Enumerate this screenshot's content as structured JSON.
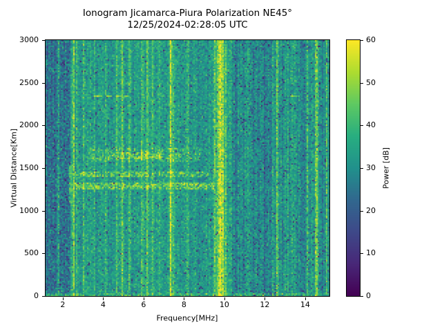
{
  "figure": {
    "title_line1": "Ionogram Jicamarca-Piura Polarization NE45°",
    "title_line2": "12/25/2024-02:28:05 UTC"
  },
  "chart_data": {
    "type": "heatmap",
    "title": "Ionogram Jicamarca-Piura Polarization NE45°",
    "subtitle": "12/25/2024-02:28:05 UTC",
    "station": "Jicamarca-Piura",
    "polarization": "NE45°",
    "timestamp_utc": "12/25/2024-02:28:05",
    "xlabel": "Frequency[MHz]",
    "ylabel": "Virtual Distance[Km]",
    "colorbar_label": "Power [dB]",
    "xlim": [
      1.15,
      15.2
    ],
    "ylim": [
      0,
      3000
    ],
    "clim": [
      0,
      60
    ],
    "x_ticks": [
      2,
      4,
      6,
      8,
      10,
      12,
      14
    ],
    "y_ticks": [
      0,
      500,
      1000,
      1500,
      2000,
      2500,
      3000
    ],
    "colorbar_ticks": [
      0,
      10,
      20,
      30,
      40,
      50,
      60
    ],
    "colormap": "viridis",
    "colormap_stops": [
      "#440154",
      "#482878",
      "#3e4989",
      "#31688e",
      "#21918c",
      "#28ae80",
      "#5ec962",
      "#addc30",
      "#fde725"
    ],
    "noise_regions": [
      {
        "f_range": [
          1.15,
          2.35
        ],
        "mean_db": 25.0,
        "std_db": 5.5,
        "dark_prob": 0.05,
        "streak_db": 1.5
      },
      {
        "f_range": [
          2.35,
          8.55
        ],
        "mean_db": 33.0,
        "std_db": 4.5,
        "dark_prob": 0.02,
        "streak_db": 1.5
      },
      {
        "f_range": [
          8.55,
          9.35
        ],
        "mean_db": 30.0,
        "std_db": 4.5,
        "dark_prob": 0.03,
        "streak_db": 2.0
      },
      {
        "f_range": [
          9.35,
          10.35
        ],
        "mean_db": 35.0,
        "std_db": 4.5,
        "dark_prob": 0.02,
        "streak_db": 2.0
      },
      {
        "f_range": [
          10.35,
          12.25
        ],
        "mean_db": 28.5,
        "std_db": 4.5,
        "dark_prob": 0.05,
        "streak_db": 2.8
      },
      {
        "f_range": [
          12.25,
          15.2
        ],
        "mean_db": 30.5,
        "std_db": 4.5,
        "dark_prob": 0.04,
        "streak_db": 3.0
      }
    ],
    "rfi_lines": [
      {
        "f": 1.78,
        "w": 0.07,
        "amp": 8
      },
      {
        "f": 2.52,
        "w": 0.08,
        "amp": 17
      },
      {
        "f": 2.66,
        "w": 0.06,
        "amp": 8
      },
      {
        "f": 3.03,
        "w": 0.07,
        "amp": 12
      },
      {
        "f": 3.55,
        "w": 0.06,
        "amp": 6
      },
      {
        "f": 4.12,
        "w": 0.06,
        "amp": 5
      },
      {
        "f": 4.68,
        "w": 0.07,
        "amp": 9
      },
      {
        "f": 4.95,
        "w": 0.07,
        "amp": 13
      },
      {
        "f": 5.28,
        "w": 0.07,
        "amp": 9
      },
      {
        "f": 5.58,
        "w": 0.06,
        "amp": 7
      },
      {
        "f": 5.92,
        "w": 0.07,
        "amp": 10
      },
      {
        "f": 6.18,
        "w": 0.08,
        "amp": 13
      },
      {
        "f": 6.42,
        "w": 0.06,
        "amp": 7
      },
      {
        "f": 6.8,
        "w": 0.06,
        "amp": 6
      },
      {
        "f": 7.33,
        "w": 0.1,
        "amp": 22
      },
      {
        "f": 7.48,
        "w": 0.06,
        "amp": 9
      },
      {
        "f": 8.15,
        "w": 0.06,
        "amp": 8
      },
      {
        "f": 8.55,
        "w": 0.06,
        "amp": 6
      },
      {
        "f": 9.1,
        "w": 0.06,
        "amp": 6
      },
      {
        "f": 9.5,
        "w": 0.08,
        "amp": 12
      },
      {
        "f": 9.72,
        "w": 0.13,
        "amp": 23
      },
      {
        "f": 9.93,
        "w": 0.1,
        "amp": 18
      },
      {
        "f": 10.08,
        "w": 0.07,
        "amp": 10
      },
      {
        "f": 10.68,
        "w": 0.07,
        "amp": 8
      },
      {
        "f": 11.15,
        "w": 0.06,
        "amp": 5
      },
      {
        "f": 12.38,
        "w": 0.07,
        "amp": 8
      },
      {
        "f": 12.57,
        "w": 0.08,
        "amp": 13
      },
      {
        "f": 12.95,
        "w": 0.06,
        "amp": 5
      },
      {
        "f": 13.35,
        "w": 0.06,
        "amp": 5
      },
      {
        "f": 14.05,
        "w": 0.06,
        "amp": 5
      },
      {
        "f": 14.52,
        "w": 0.08,
        "amp": 14
      },
      {
        "f": 15.05,
        "w": 0.07,
        "amp": 9
      }
    ],
    "echo_bands": [
      {
        "d": [
          1255,
          1335
        ],
        "f": [
          2.5,
          9.5
        ],
        "level": 45,
        "spread": 6,
        "density": 0.75
      },
      {
        "d": [
          1390,
          1465
        ],
        "f": [
          2.6,
          9.2
        ],
        "level": 44,
        "spread": 6,
        "density": 0.65
      },
      {
        "d": [
          1570,
          1730
        ],
        "f": [
          3.2,
          8.8
        ],
        "level": 41,
        "spread": 6,
        "density": 0.5
      },
      {
        "d": [
          1600,
          1690
        ],
        "f": [
          4.2,
          6.9
        ],
        "level": 46,
        "spread": 6,
        "density": 0.55
      },
      {
        "d": [
          1080,
          1520
        ],
        "f": [
          2.33,
          2.43
        ],
        "level": 42,
        "spread": 4,
        "density": 0.8
      },
      {
        "d": [
          0,
          40
        ],
        "f": [
          1.15,
          15.2
        ],
        "level": 40,
        "spread": 5,
        "density": 0.5
      }
    ],
    "dash_echo_traces": [
      {
        "distance_km": 2343,
        "height_km": 18,
        "freq_segments": [
          [
            3.55,
            3.95
          ],
          [
            4.15,
            4.45
          ],
          [
            4.62,
            4.87
          ],
          [
            5.02,
            5.22
          ]
        ],
        "level_db": 50
      },
      {
        "distance_km": 2343,
        "height_km": 16,
        "freq_segments": [
          [
            13.25,
            13.72
          ]
        ],
        "level_db": 46
      }
    ]
  }
}
